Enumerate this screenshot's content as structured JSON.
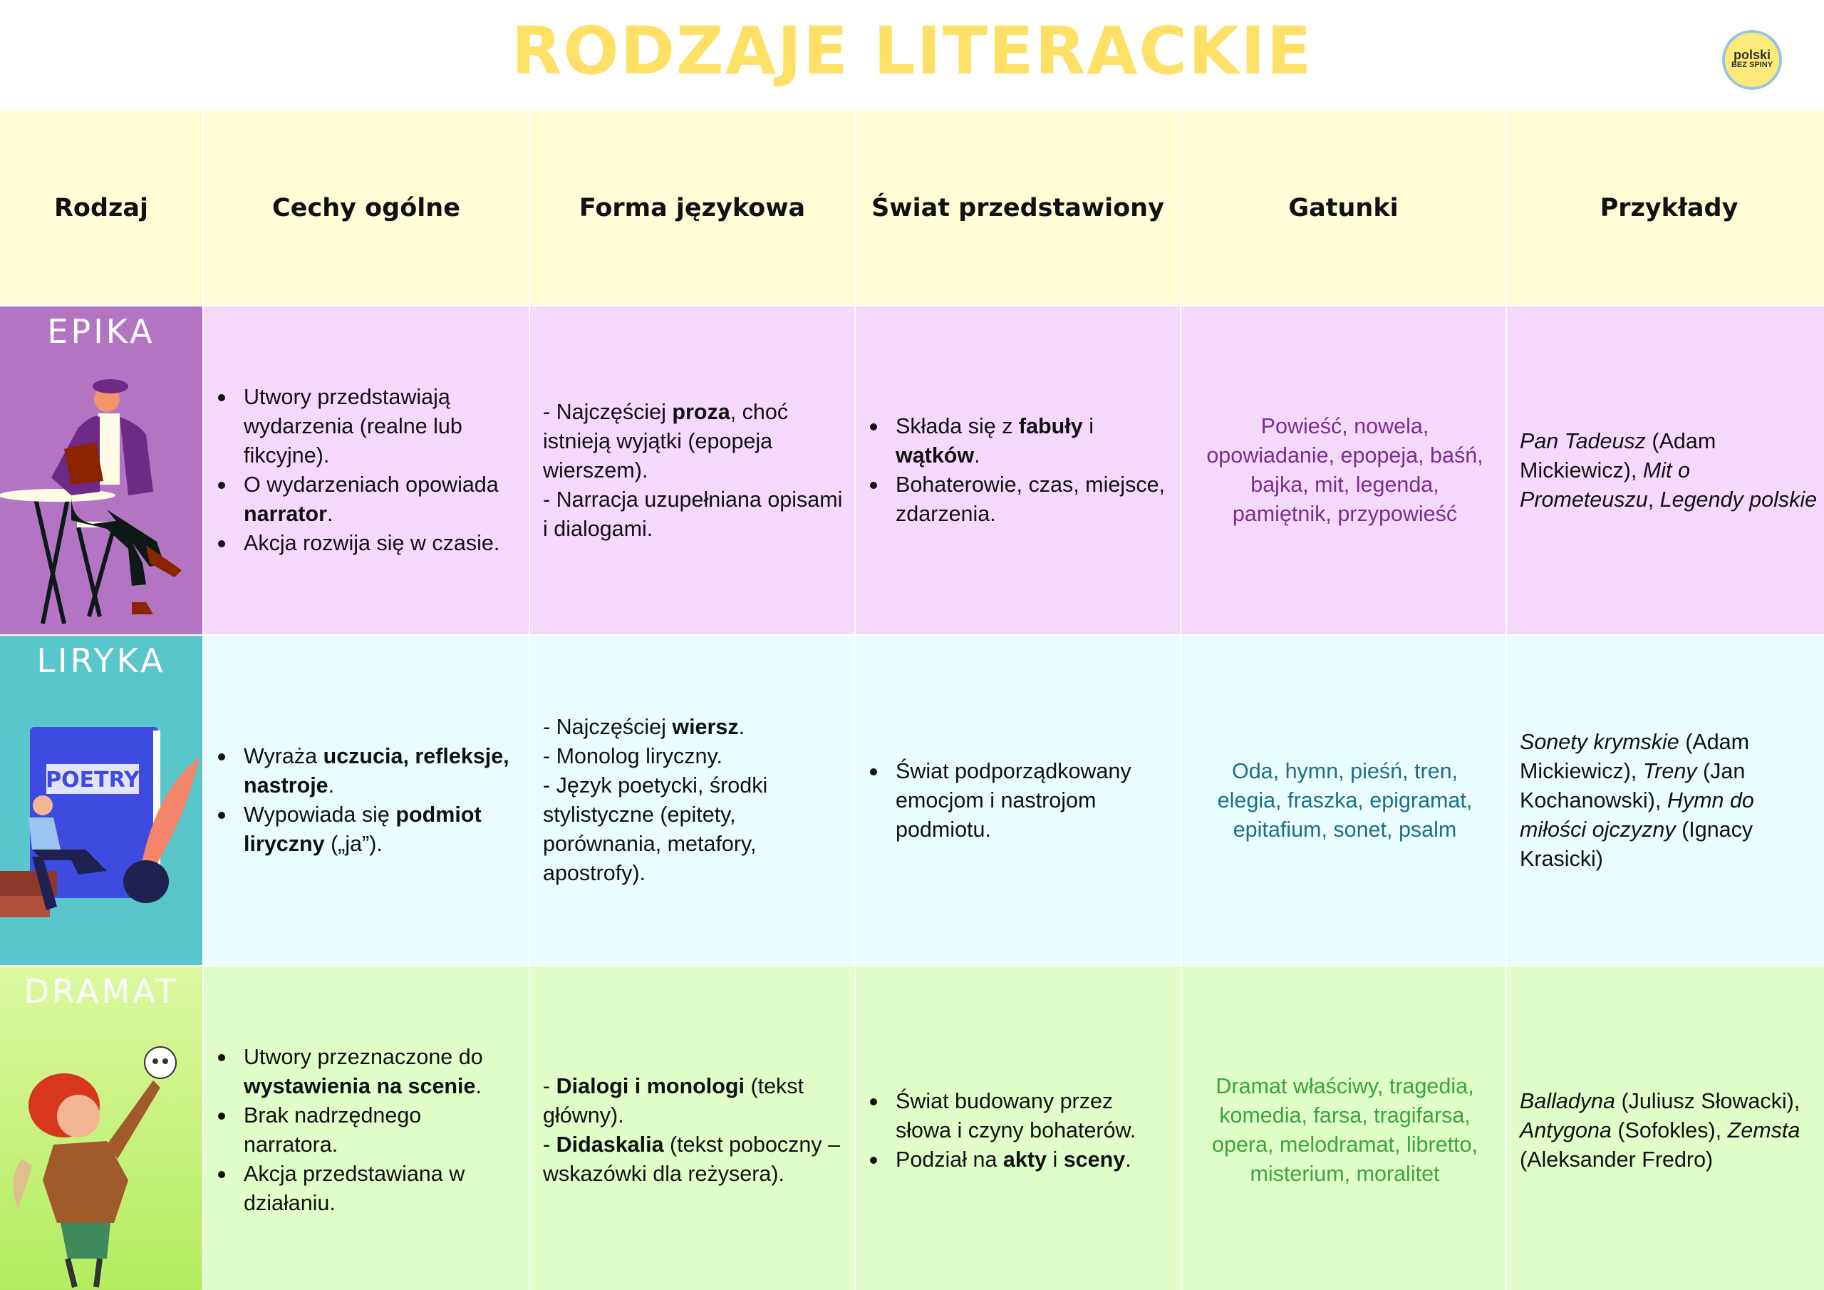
{
  "title": "RODZAJE LITERACKIE",
  "logo": {
    "line1": "polski",
    "line2": "BEZ SPINY"
  },
  "headers": [
    "Rodzaj",
    "Cechy ogólne",
    "Forma językowa",
    "Świat przedstawiony",
    "Gatunki",
    "Przykłady"
  ],
  "rows": [
    {
      "name": "EPIKA",
      "label_color": "#B374C4",
      "cell_color": "#F5D9FC",
      "genre_color": "#7B2D8E",
      "illustration": "man-reading-at-cafe-table",
      "cechy": [
        [
          {
            "t": "Utwory przedstawiają wydarzenia (realne lub fikcyjne)."
          }
        ],
        [
          {
            "t": "O wydarzeniach opowiada "
          },
          {
            "t": "narrator",
            "s": "b"
          },
          {
            "t": "."
          }
        ],
        [
          {
            "t": "Akcja rozwija się w czasie."
          }
        ]
      ],
      "forma": [
        [
          {
            "t": "- Najczęściej "
          },
          {
            "t": "proza",
            "s": "b"
          },
          {
            "t": ", choć istnieją wyjątki (epopeja wierszem)."
          }
        ],
        [
          {
            "t": "- Narracja uzupełniana opisami i dialogami."
          }
        ]
      ],
      "swiat": [
        [
          {
            "t": "Składa się z "
          },
          {
            "t": "fabuły",
            "s": "b"
          },
          {
            "t": " i "
          },
          {
            "t": "wątków",
            "s": "b"
          },
          {
            "t": "."
          }
        ],
        [
          {
            "t": "Bohaterowie, czas, miejsce, zdarzenia."
          }
        ]
      ],
      "gatunki": "Powieść, nowela, opowiadanie, epopeja, baśń, bajka, mit, legenda, pamiętnik, przypowieść",
      "przyklady": [
        {
          "t": "Pan Tadeusz",
          "s": "i"
        },
        {
          "t": " (Adam Mickiewicz), "
        },
        {
          "t": "Mit o Prometeuszu",
          "s": "i"
        },
        {
          "t": ", "
        },
        {
          "t": "Legendy polskie",
          "s": "i"
        }
      ]
    },
    {
      "name": "LIRYKA",
      "label_color": "#58C6CA",
      "cell_color": "#EAFDFE",
      "genre_color": "#1F6E87",
      "illustration": "poet-with-poetry-book-and-quill",
      "book_text": "POETRY",
      "cechy": [
        [
          {
            "t": "Wyraża "
          },
          {
            "t": "uczucia, refleksje, nastroje",
            "s": "b"
          },
          {
            "t": "."
          }
        ],
        [
          {
            "t": "Wypowiada się "
          },
          {
            "t": "podmiot liryczny",
            "s": "b"
          },
          {
            "t": " („ja”)."
          }
        ]
      ],
      "forma": [
        [
          {
            "t": "- Najczęściej "
          },
          {
            "t": "wiersz",
            "s": "b"
          },
          {
            "t": "."
          }
        ],
        [
          {
            "t": "- Monolog liryczny."
          }
        ],
        [
          {
            "t": "- Język poetycki, środki stylistyczne (epitety, porównania, metafory, apostrofy)."
          }
        ]
      ],
      "swiat": [
        [
          {
            "t": "Świat podporządkowany emocjom i nastrojom podmiotu."
          }
        ]
      ],
      "gatunki": "Oda, hymn, pieśń, tren, elegia, fraszka, epigramat, epitafium, sonet, psalm",
      "przyklady": [
        {
          "t": "Sonety krymskie",
          "s": "i"
        },
        {
          "t": " (Adam Mickiewicz), "
        },
        {
          "t": "Treny",
          "s": "i"
        },
        {
          "t": " (Jan Kochanowski), "
        },
        {
          "t": "Hymn do miłości ojczyzny",
          "s": "i"
        },
        {
          "t": " (Ignacy Krasicki)"
        }
      ]
    },
    {
      "name": "DRAMAT",
      "label_color": "#C2F27A",
      "cell_color": "#DFFEC8",
      "genre_color": "#3DA33D",
      "illustration": "actor-holding-skull",
      "cechy": [
        [
          {
            "t": "Utwory przeznaczone do "
          },
          {
            "t": "wystawienia na scenie",
            "s": "b"
          },
          {
            "t": "."
          }
        ],
        [
          {
            "t": "Brak nadrzędnego narratora."
          }
        ],
        [
          {
            "t": "Akcja przedstawiana w działaniu."
          }
        ]
      ],
      "forma": [
        [
          {
            "t": "- "
          },
          {
            "t": "Dialogi i monologi",
            "s": "b"
          },
          {
            "t": " (tekst główny)."
          }
        ],
        [
          {
            "t": "- "
          },
          {
            "t": "Didaskalia",
            "s": "b"
          },
          {
            "t": " (tekst poboczny – wskazówki dla reżysera)."
          }
        ]
      ],
      "swiat": [
        [
          {
            "t": "Świat budowany przez słowa i czyny bohaterów."
          }
        ],
        [
          {
            "t": "Podział na "
          },
          {
            "t": "akty",
            "s": "b"
          },
          {
            "t": " i "
          },
          {
            "t": "sceny",
            "s": "b"
          },
          {
            "t": "."
          }
        ]
      ],
      "gatunki": "Dramat właściwy, tragedia, komedia, farsa, tragifarsa, opera, melodramat, libretto, misterium, moralitet",
      "przyklady": [
        {
          "t": "Balladyna",
          "s": "i"
        },
        {
          "t": " (Juliusz Słowacki), "
        },
        {
          "t": "Antygona",
          "s": "i"
        },
        {
          "t": " (Sofokles), "
        },
        {
          "t": "Zemsta",
          "s": "i"
        },
        {
          "t": " (Aleksander Fredro)"
        }
      ]
    }
  ]
}
